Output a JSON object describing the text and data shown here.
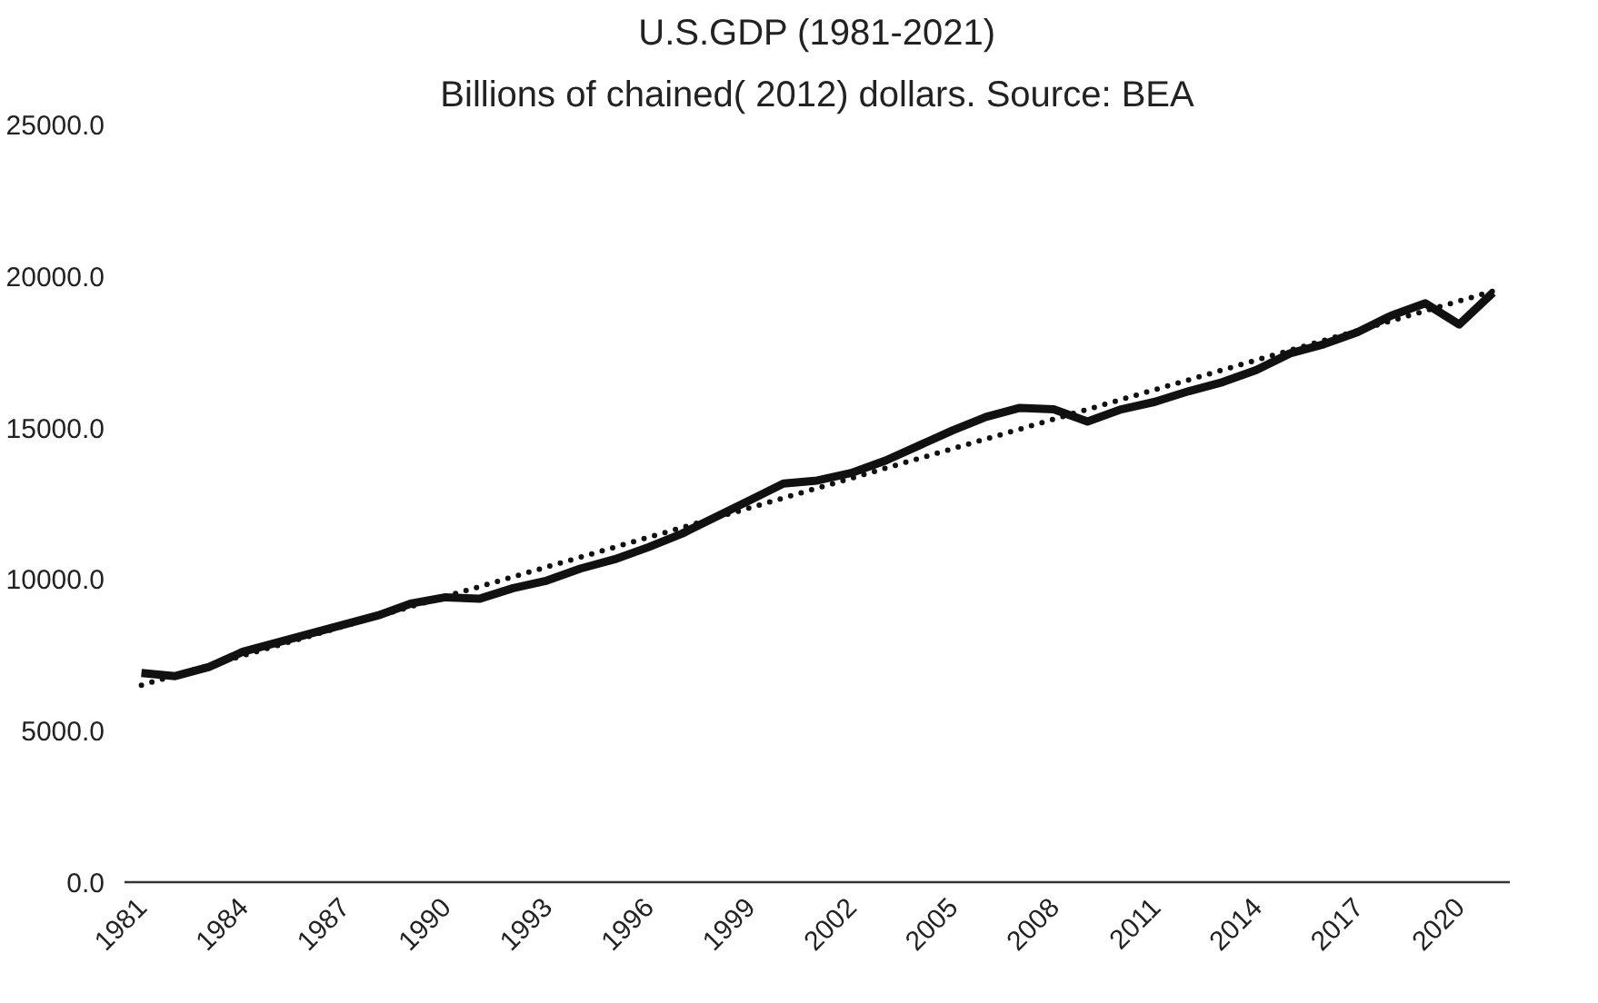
{
  "chart_data": {
    "type": "line",
    "title": "U.S.GDP (1981-2021)",
    "subtitle": "Billions of chained( 2012) dollars. Source: BEA",
    "x": [
      1981,
      1982,
      1983,
      1984,
      1985,
      1986,
      1987,
      1988,
      1989,
      1990,
      1991,
      1992,
      1993,
      1994,
      1995,
      1996,
      1997,
      1998,
      1999,
      2000,
      2001,
      2002,
      2003,
      2004,
      2005,
      2006,
      2007,
      2008,
      2009,
      2010,
      2011,
      2012,
      2013,
      2014,
      2015,
      2016,
      2017,
      2018,
      2019,
      2020,
      2021
    ],
    "series": [
      {
        "color": "#111111",
        "line_style": "solid",
        "values": [
          6900,
          6800,
          7100,
          7600,
          7900,
          8200,
          8500,
          8800,
          9200,
          9400,
          9350,
          9700,
          9950,
          10350,
          10650,
          11050,
          11500,
          12050,
          12600,
          13150,
          13250,
          13500,
          13900,
          14400,
          14900,
          15350,
          15650,
          15600,
          15200,
          15600,
          15850,
          16200,
          16500,
          16900,
          17450,
          17750,
          18150,
          18700,
          19100,
          18400,
          19450
        ]
      },
      {
        "type": "line",
        "color": "#111111",
        "line_style": "dotted",
        "x": [
          1981,
          2021
        ],
        "values": [
          6500,
          19500
        ]
      }
    ],
    "xlim": [
      1980.5,
      2021.5
    ],
    "xticks": [
      1981,
      1984,
      1987,
      1990,
      1993,
      1996,
      1999,
      2002,
      2005,
      2008,
      2011,
      2014,
      2017,
      2020
    ],
    "ylim": [
      0,
      25000
    ],
    "yticks": [
      {
        "value": 0,
        "label": "0.0"
      },
      {
        "value": 5000,
        "label": "5000.0"
      },
      {
        "value": 10000,
        "label": "10000.0"
      },
      {
        "value": 15000,
        "label": "15000.0"
      },
      {
        "value": 20000,
        "label": "20000.0"
      },
      {
        "value": 25000,
        "label": "25000.0"
      }
    ],
    "grid": false,
    "marker": "none"
  }
}
